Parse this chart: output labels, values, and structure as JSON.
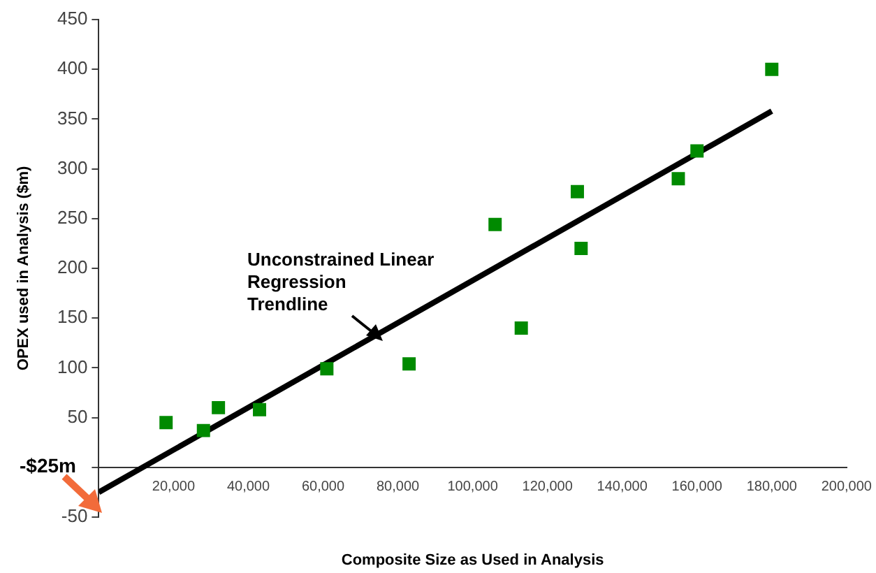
{
  "chart_data": {
    "type": "scatter",
    "xlabel": "Composite Size as Used in Analysis",
    "ylabel": "OPEX used in Analysis ($m)",
    "xlim": [
      0,
      200000
    ],
    "ylim": [
      -50,
      450
    ],
    "xticks": [
      {
        "value": 0,
        "label": null
      },
      {
        "value": 20000,
        "label": "20,000"
      },
      {
        "value": 40000,
        "label": "40,000"
      },
      {
        "value": 60000,
        "label": "60,000"
      },
      {
        "value": 80000,
        "label": "80,000"
      },
      {
        "value": 100000,
        "label": "100,000"
      },
      {
        "value": 120000,
        "label": "120,000"
      },
      {
        "value": 140000,
        "label": "140,000"
      },
      {
        "value": 160000,
        "label": "160,000"
      },
      {
        "value": 180000,
        "label": "180,000"
      },
      {
        "value": 200000,
        "label": "200,000"
      }
    ],
    "yticks": [
      -50,
      {
        "value": 0,
        "label": null
      },
      50,
      100,
      150,
      200,
      250,
      300,
      350,
      400,
      450
    ],
    "grid": false,
    "legend": false,
    "series": [
      {
        "type": "scatter",
        "marker": "square",
        "color": "#008a00",
        "x": [
          18000,
          28000,
          32000,
          43000,
          61000,
          83000,
          106000,
          113000,
          128000,
          129000,
          155000,
          160000,
          180000
        ],
        "values": [
          45,
          37,
          60,
          58,
          99,
          104,
          244,
          140,
          277,
          220,
          290,
          318,
          400
        ]
      },
      {
        "type": "line",
        "color": "#000000",
        "x": [
          0,
          180000
        ],
        "values": [
          -25,
          358
        ]
      }
    ],
    "annotations": [
      "Unconstrained Linear Regression Trendline",
      "-$25m"
    ]
  }
}
